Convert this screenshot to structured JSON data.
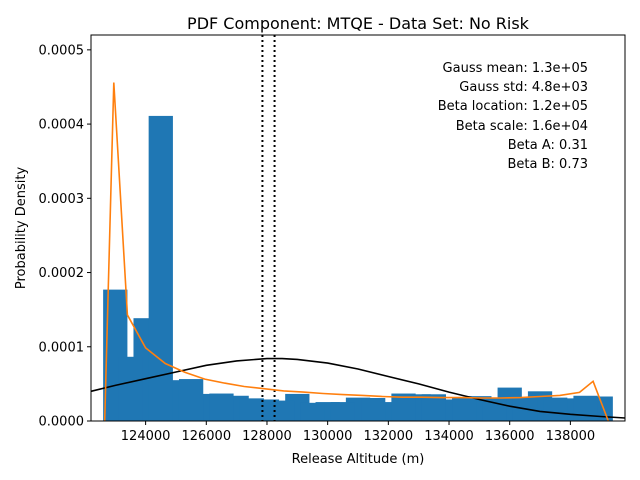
{
  "chart_data": {
    "type": "bar",
    "title": "PDF Component: MTQE - Data Set: No Risk",
    "xlabel": "Release Altitude (m)",
    "ylabel": "Probability Density",
    "xlim": [
      122200,
      139800
    ],
    "ylim": [
      0,
      0.00052
    ],
    "xticks": [
      124000,
      126000,
      128000,
      130000,
      132000,
      134000,
      136000,
      138000
    ],
    "xtick_labels": [
      "124000",
      "126000",
      "128000",
      "130000",
      "132000",
      "134000",
      "136000",
      "138000"
    ],
    "yticks": [
      0,
      0.0001,
      0.0002,
      0.0003,
      0.0004,
      0.0005
    ],
    "ytick_labels": [
      "0.0000",
      "0.0001",
      "0.0002",
      "0.0003",
      "0.0004",
      "0.0005"
    ],
    "bar_color": "#1f77b4",
    "bar_width": 800,
    "bars": {
      "x": [
        123000,
        124000,
        125000,
        126000,
        127000,
        128000,
        129000,
        130000,
        131000,
        132000,
        133000,
        134000,
        135000,
        136000,
        137000,
        138000,
        139000,
        123500,
        124500,
        125500,
        126500,
        127500,
        128500,
        129500,
        130500,
        131500,
        132500,
        133500,
        134500,
        135500,
        136500,
        137500,
        138500
      ],
      "values": [
        0.000177,
        0.0001385,
        5.5e-05,
        3.65e-05,
        3.4e-05,
        2.9e-05,
        3.65e-05,
        2.55e-05,
        3.15e-05,
        2.55e-05,
        3.6e-05,
        2.9e-05,
        3.35e-05,
        4.5e-05,
        4e-05,
        3.05e-05,
        3.3e-05,
        8.65e-05,
        0.000411,
        5.65e-05,
        3.7e-05,
        3.05e-05,
        2.75e-05,
        2.45e-05,
        2.55e-05,
        3.1e-05,
        3.7e-05,
        3.6e-05,
        3.1e-05,
        3.1e-05,
        3.15e-05,
        3.15e-05,
        3.4e-05
      ]
    },
    "series": [
      {
        "type": "line",
        "color": "#000000",
        "x": [
          122200,
          123000,
          124000,
          125000,
          126000,
          127000,
          128000,
          128500,
          129000,
          130000,
          131000,
          132000,
          133000,
          134000,
          135000,
          136000,
          137000,
          138000,
          139000,
          139800
        ],
        "y": [
          4e-05,
          4.8e-05,
          5.7e-05,
          6.6e-05,
          7.5e-05,
          8.1e-05,
          8.4e-05,
          8.4e-05,
          8.3e-05,
          7.8e-05,
          7e-05,
          6e-05,
          5e-05,
          3.9e-05,
          2.9e-05,
          2e-05,
          1.3e-05,
          9e-06,
          6e-06,
          4e-06
        ]
      },
      {
        "type": "line",
        "color": "#ff7f0e",
        "x": [
          122650,
          122950,
          123400,
          124000,
          124650,
          125300,
          125950,
          126600,
          127250,
          127900,
          128550,
          129200,
          129850,
          130500,
          131150,
          131800,
          132450,
          133100,
          133750,
          134400,
          135050,
          135700,
          136350,
          137000,
          137650,
          138300,
          138750,
          139250
        ],
        "y": [
          0,
          0.000456,
          0.000143,
          9.85e-05,
          7.75e-05,
          6.55e-05,
          5.65e-05,
          5.1e-05,
          4.65e-05,
          4.35e-05,
          4.05e-05,
          3.9e-05,
          3.7e-05,
          3.55e-05,
          3.45e-05,
          3.3e-05,
          3.2e-05,
          3.2e-05,
          3.15e-05,
          3.15e-05,
          3.1e-05,
          3.1e-05,
          3.15e-05,
          3.3e-05,
          3.45e-05,
          3.85e-05,
          5.35e-05,
          0
        ]
      }
    ],
    "vlines": [
      127850,
      128250
    ],
    "annotations": [
      "Gauss mean: 1.3e+05",
      "Gauss std: 4.8e+03",
      "Beta location: 1.2e+05",
      "Beta scale: 1.6e+04",
      "Beta A: 0.31",
      "Beta B: 0.73"
    ]
  }
}
